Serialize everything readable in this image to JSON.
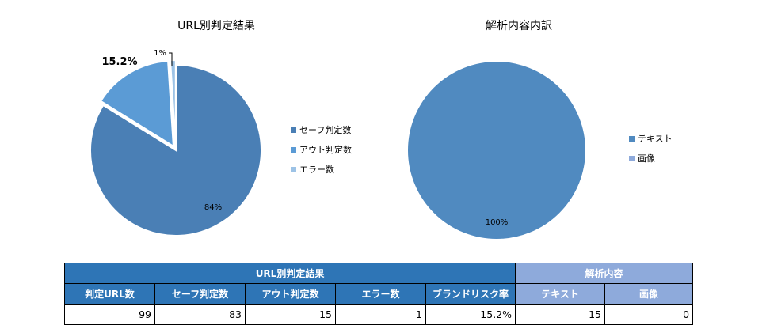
{
  "chart_data": [
    {
      "type": "pie",
      "title": "URL別判定結果",
      "slices": [
        {
          "label": "セーフ判定数",
          "value": 83,
          "pct_label": "84%",
          "color": "#4a7fb5"
        },
        {
          "label": "アウト判定数",
          "value": 15,
          "pct_label": "15.2%",
          "color": "#5b9bd5"
        },
        {
          "label": "エラー数",
          "value": 1,
          "pct_label": "1%",
          "color": "#9dc3e6"
        }
      ],
      "legend": "right"
    },
    {
      "type": "pie",
      "title": "解析内容内訳",
      "slices": [
        {
          "label": "テキスト",
          "value": 15,
          "pct_label": "100%",
          "color": "#508ac0"
        },
        {
          "label": "画像",
          "value": 0,
          "pct_label": "",
          "color": "#8eaadb"
        }
      ],
      "legend": "right"
    }
  ],
  "table": {
    "group1": "URL別判定結果",
    "group2": "解析内容",
    "headers": [
      "判定URL数",
      "セーフ判定数",
      "アウト判定数",
      "エラー数",
      "ブランドリスク率",
      "テキスト",
      "画像"
    ],
    "values": [
      "99",
      "83",
      "15",
      "1",
      "15.2%",
      "15",
      "0"
    ]
  }
}
